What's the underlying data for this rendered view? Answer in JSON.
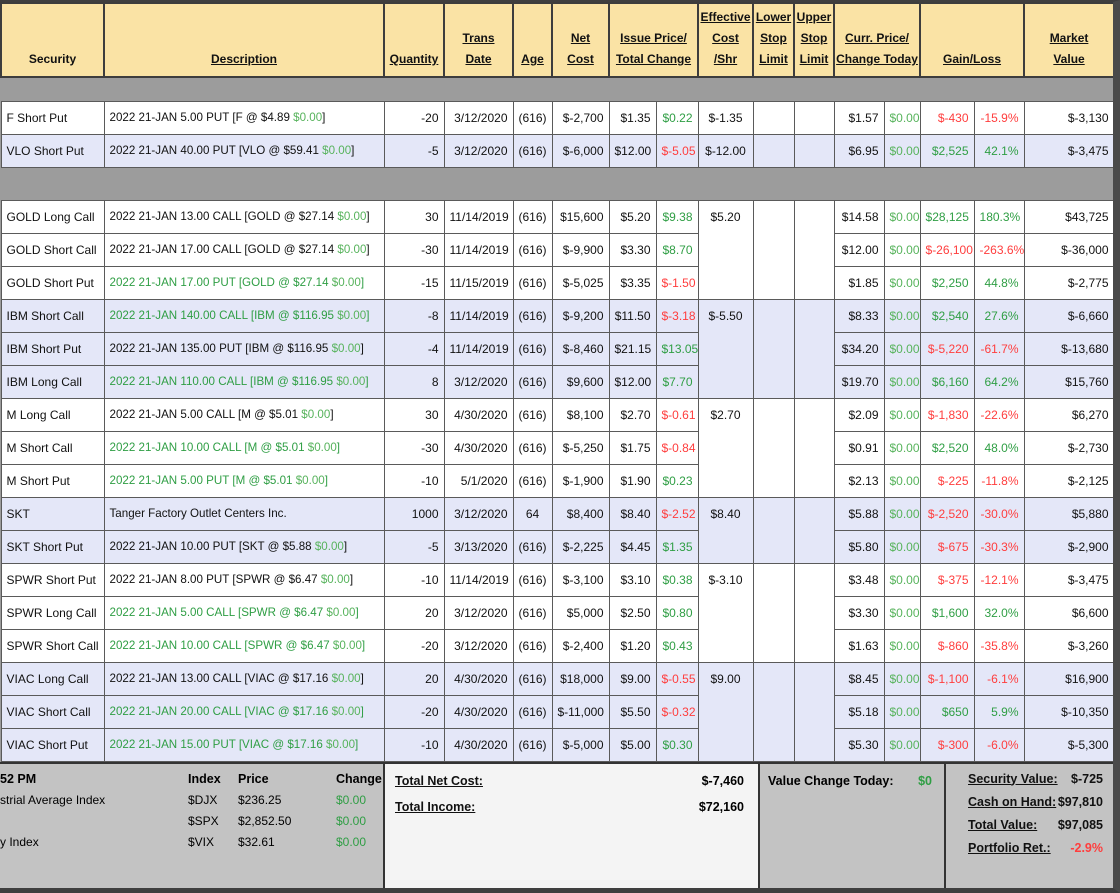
{
  "colors": {
    "positive": "#2f9e44",
    "positive_light": "#57b35c",
    "negative": "#ff3d3d",
    "header_bg": "#fae3a5",
    "row_alt_bg": "#e4e7f8",
    "separator_gray": "#9c9c9c",
    "footer_gray": "#c3c3c3"
  },
  "table": {
    "header": [
      {
        "lines": [
          "Security"
        ],
        "underline": false,
        "colspan": 1
      },
      {
        "lines": [
          "Description"
        ],
        "underline": true,
        "colspan": 1
      },
      {
        "lines": [
          "Quantity"
        ],
        "underline": true,
        "colspan": 1
      },
      {
        "lines": [
          "Trans",
          "Date"
        ],
        "underline": true,
        "colspan": 1
      },
      {
        "lines": [
          "Age"
        ],
        "underline": true,
        "colspan": 1
      },
      {
        "lines": [
          "Net",
          "Cost"
        ],
        "underline": true,
        "colspan": 1
      },
      {
        "lines": [
          "Issue Price/",
          "Total Change"
        ],
        "underline": true,
        "colspan": 2
      },
      {
        "lines": [
          "Effective",
          "Cost",
          "/Shr"
        ],
        "underline": true,
        "colspan": 1
      },
      {
        "lines": [
          "Lower",
          "Stop",
          "Limit"
        ],
        "underline": true,
        "colspan": 1
      },
      {
        "lines": [
          "Upper",
          "Stop",
          "Limit"
        ],
        "underline": true,
        "colspan": 1
      },
      {
        "lines": [
          "Curr. Price/",
          "Change Today"
        ],
        "underline": true,
        "colspan": 2
      },
      {
        "lines": [
          "Gain/Loss"
        ],
        "underline": true,
        "colspan": 2
      },
      {
        "lines": [
          "Market",
          "Value"
        ],
        "underline": true,
        "colspan": 1
      }
    ],
    "groups": [
      {
        "bg": "w",
        "eff": "$-1.35",
        "rows": [
          {
            "sec": "F Short Put",
            "pre": "2022 21-JAN 5.00 PUT [F @ $4.89 ",
            "chg": "$0.00",
            "post": "]",
            "dc": "k",
            "qty": "-20",
            "date": "3/12/2020",
            "age": "(616)",
            "net": "$-2,700",
            "ip": "$1.35",
            "tc": "$0.22",
            "tcc": "g",
            "cp": "$1.57",
            "ct": "$0.00",
            "gain": "$-430",
            "gc": "r",
            "pct": "-15.9%",
            "pc": "r",
            "mv": "$-3,130"
          }
        ]
      },
      {
        "bg": "l",
        "eff": "$-12.00",
        "rows": [
          {
            "sec": "VLO Short Put",
            "pre": "2022 21-JAN 40.00 PUT [VLO @ $59.41 ",
            "chg": "$0.00",
            "post": "]",
            "dc": "k",
            "qty": "-5",
            "date": "3/12/2020",
            "age": "(616)",
            "net": "$-6,000",
            "ip": "$12.00",
            "tc": "$-5.05",
            "tcc": "r",
            "cp": "$6.95",
            "ct": "$0.00",
            "gain": "$2,525",
            "gc": "g",
            "pct": "42.1%",
            "pc": "g",
            "mv": "$-3,475"
          }
        ]
      },
      {
        "bg": "w",
        "eff": "$5.20",
        "rows": [
          {
            "sec": "GOLD Long Call",
            "pre": "2022 21-JAN 13.00 CALL [GOLD @ $27.14 ",
            "chg": "$0.00",
            "post": "]",
            "dc": "k",
            "qty": "30",
            "date": "11/14/2019",
            "age": "(616)",
            "net": "$15,600",
            "ip": "$5.20",
            "tc": "$9.38",
            "tcc": "g",
            "cp": "$14.58",
            "ct": "$0.00",
            "gain": "$28,125",
            "gc": "g",
            "pct": "180.3%",
            "pc": "g",
            "mv": "$43,725"
          },
          {
            "sec": "GOLD Short Call",
            "pre": "2022 21-JAN 17.00 CALL [GOLD @ $27.14 ",
            "chg": "$0.00",
            "post": "]",
            "dc": "k",
            "qty": "-30",
            "date": "11/14/2019",
            "age": "(616)",
            "net": "$-9,900",
            "ip": "$3.30",
            "tc": "$8.70",
            "tcc": "g",
            "cp": "$12.00",
            "ct": "$0.00",
            "gain": "$-26,100",
            "gc": "r",
            "pct": "-263.6%",
            "pc": "r",
            "mv": "$-36,000"
          },
          {
            "sec": "GOLD Short Put",
            "pre": "2022 21-JAN 17.00 PUT [GOLD @ $27.14 ",
            "chg": "$0.00",
            "post": "]",
            "dc": "g",
            "qty": "-15",
            "date": "11/15/2019",
            "age": "(616)",
            "net": "$-5,025",
            "ip": "$3.35",
            "tc": "$-1.50",
            "tcc": "r",
            "cp": "$1.85",
            "ct": "$0.00",
            "gain": "$2,250",
            "gc": "g",
            "pct": "44.8%",
            "pc": "g",
            "mv": "$-2,775"
          }
        ]
      },
      {
        "bg": "l",
        "eff": "$-5.50",
        "rows": [
          {
            "sec": "IBM Short Call",
            "pre": "2022 21-JAN 140.00 CALL [IBM @ $116.95 ",
            "chg": "$0.00",
            "post": "]",
            "dc": "g",
            "qty": "-8",
            "date": "11/14/2019",
            "age": "(616)",
            "net": "$-9,200",
            "ip": "$11.50",
            "tc": "$-3.18",
            "tcc": "r",
            "cp": "$8.33",
            "ct": "$0.00",
            "gain": "$2,540",
            "gc": "g",
            "pct": "27.6%",
            "pc": "g",
            "mv": "$-6,660"
          },
          {
            "sec": "IBM Short Put",
            "pre": "2022 21-JAN 135.00 PUT [IBM @ $116.95 ",
            "chg": "$0.00",
            "post": "]",
            "dc": "k",
            "qty": "-4",
            "date": "11/14/2019",
            "age": "(616)",
            "net": "$-8,460",
            "ip": "$21.15",
            "tc": "$13.05",
            "tcc": "g",
            "cp": "$34.20",
            "ct": "$0.00",
            "gain": "$-5,220",
            "gc": "r",
            "pct": "-61.7%",
            "pc": "r",
            "mv": "$-13,680"
          },
          {
            "sec": "IBM Long Call",
            "pre": "2022 21-JAN 110.00 CALL [IBM @ $116.95 ",
            "chg": "$0.00",
            "post": "]",
            "dc": "g",
            "qty": "8",
            "date": "3/12/2020",
            "age": "(616)",
            "net": "$9,600",
            "ip": "$12.00",
            "tc": "$7.70",
            "tcc": "g",
            "cp": "$19.70",
            "ct": "$0.00",
            "gain": "$6,160",
            "gc": "g",
            "pct": "64.2%",
            "pc": "g",
            "mv": "$15,760"
          }
        ]
      },
      {
        "bg": "w",
        "eff": "$2.70",
        "rows": [
          {
            "sec": "M Long Call",
            "pre": "2022 21-JAN 5.00 CALL [M @ $5.01 ",
            "chg": "$0.00",
            "post": "]",
            "dc": "k",
            "qty": "30",
            "date": "4/30/2020",
            "age": "(616)",
            "net": "$8,100",
            "ip": "$2.70",
            "tc": "$-0.61",
            "tcc": "r",
            "cp": "$2.09",
            "ct": "$0.00",
            "gain": "$-1,830",
            "gc": "r",
            "pct": "-22.6%",
            "pc": "r",
            "mv": "$6,270"
          },
          {
            "sec": "M Short Call",
            "pre": "2022 21-JAN 10.00 CALL [M @ $5.01 ",
            "chg": "$0.00",
            "post": "]",
            "dc": "g",
            "qty": "-30",
            "date": "4/30/2020",
            "age": "(616)",
            "net": "$-5,250",
            "ip": "$1.75",
            "tc": "$-0.84",
            "tcc": "r",
            "cp": "$0.91",
            "ct": "$0.00",
            "gain": "$2,520",
            "gc": "g",
            "pct": "48.0%",
            "pc": "g",
            "mv": "$-2,730"
          },
          {
            "sec": "M Short Put",
            "pre": "2022 21-JAN 5.00 PUT [M @ $5.01 ",
            "chg": "$0.00",
            "post": "]",
            "dc": "g",
            "qty": "-10",
            "date": "5/1/2020",
            "age": "(616)",
            "net": "$-1,900",
            "ip": "$1.90",
            "tc": "$0.23",
            "tcc": "g",
            "cp": "$2.13",
            "ct": "$0.00",
            "gain": "$-225",
            "gc": "r",
            "pct": "-11.8%",
            "pc": "r",
            "mv": "$-2,125"
          }
        ]
      },
      {
        "bg": "l",
        "eff": "$8.40",
        "rows": [
          {
            "sec": "SKT",
            "pre": "Tanger Factory Outlet Centers Inc.",
            "chg": "",
            "post": "",
            "dc": "k",
            "qty": "1000",
            "date": "3/12/2020",
            "age": "64",
            "net": "$8,400",
            "ip": "$8.40",
            "tc": "$-2.52",
            "tcc": "r",
            "cp": "$5.88",
            "ct": "$0.00",
            "gain": "$-2,520",
            "gc": "r",
            "pct": "-30.0%",
            "pc": "r",
            "mv": "$5,880"
          },
          {
            "sec": "SKT Short Put",
            "pre": "2022 21-JAN 10.00 PUT [SKT @ $5.88 ",
            "chg": "$0.00",
            "post": "]",
            "dc": "k",
            "qty": "-5",
            "date": "3/13/2020",
            "age": "(616)",
            "net": "$-2,225",
            "ip": "$4.45",
            "tc": "$1.35",
            "tcc": "g",
            "cp": "$5.80",
            "ct": "$0.00",
            "gain": "$-675",
            "gc": "r",
            "pct": "-30.3%",
            "pc": "r",
            "mv": "$-2,900"
          }
        ]
      },
      {
        "bg": "w",
        "eff": "$-3.10",
        "rows": [
          {
            "sec": "SPWR Short Put",
            "pre": "2022 21-JAN 8.00 PUT [SPWR @ $6.47 ",
            "chg": "$0.00",
            "post": "]",
            "dc": "k",
            "qty": "-10",
            "date": "11/14/2019",
            "age": "(616)",
            "net": "$-3,100",
            "ip": "$3.10",
            "tc": "$0.38",
            "tcc": "g",
            "cp": "$3.48",
            "ct": "$0.00",
            "gain": "$-375",
            "gc": "r",
            "pct": "-12.1%",
            "pc": "r",
            "mv": "$-3,475"
          },
          {
            "sec": "SPWR Long Call",
            "pre": "2022 21-JAN 5.00 CALL [SPWR @ $6.47 ",
            "chg": "$0.00",
            "post": "]",
            "dc": "g",
            "qty": "20",
            "date": "3/12/2020",
            "age": "(616)",
            "net": "$5,000",
            "ip": "$2.50",
            "tc": "$0.80",
            "tcc": "g",
            "cp": "$3.30",
            "ct": "$0.00",
            "gain": "$1,600",
            "gc": "g",
            "pct": "32.0%",
            "pc": "g",
            "mv": "$6,600"
          },
          {
            "sec": "SPWR Short Call",
            "pre": "2022 21-JAN 10.00 CALL [SPWR @ $6.47 ",
            "chg": "$0.00",
            "post": "]",
            "dc": "g",
            "qty": "-20",
            "date": "3/12/2020",
            "age": "(616)",
            "net": "$-2,400",
            "ip": "$1.20",
            "tc": "$0.43",
            "tcc": "g",
            "cp": "$1.63",
            "ct": "$0.00",
            "gain": "$-860",
            "gc": "r",
            "pct": "-35.8%",
            "pc": "r",
            "mv": "$-3,260"
          }
        ]
      },
      {
        "bg": "l",
        "eff": "$9.00",
        "rows": [
          {
            "sec": "VIAC Long Call",
            "pre": "2022 21-JAN 13.00 CALL [VIAC @ $17.16 ",
            "chg": "$0.00",
            "post": "]",
            "dc": "k",
            "qty": "20",
            "date": "4/30/2020",
            "age": "(616)",
            "net": "$18,000",
            "ip": "$9.00",
            "tc": "$-0.55",
            "tcc": "r",
            "cp": "$8.45",
            "ct": "$0.00",
            "gain": "$-1,100",
            "gc": "r",
            "pct": "-6.1%",
            "pc": "r",
            "mv": "$16,900"
          },
          {
            "sec": "VIAC Short Call",
            "pre": "2022 21-JAN 20.00 CALL [VIAC @ $17.16 ",
            "chg": "$0.00",
            "post": "]",
            "dc": "g",
            "qty": "-20",
            "date": "4/30/2020",
            "age": "(616)",
            "net": "$-11,000",
            "ip": "$5.50",
            "tc": "$-0.32",
            "tcc": "r",
            "cp": "$5.18",
            "ct": "$0.00",
            "gain": "$650",
            "gc": "g",
            "pct": "5.9%",
            "pc": "g",
            "mv": "$-10,350"
          },
          {
            "sec": "VIAC Short Put",
            "pre": "2022 21-JAN 15.00 PUT [VIAC @ $17.16 ",
            "chg": "$0.00",
            "post": "]",
            "dc": "g",
            "qty": "-10",
            "date": "4/30/2020",
            "age": "(616)",
            "net": "$-5,000",
            "ip": "$5.00",
            "tc": "$0.30",
            "tcc": "g",
            "cp": "$5.30",
            "ct": "$0.00",
            "gain": "$-300",
            "gc": "r",
            "pct": "-6.0%",
            "pc": "r",
            "mv": "$-5,300"
          }
        ]
      }
    ]
  },
  "footer": {
    "indexes": {
      "time": "52 PM",
      "headers": [
        "Index",
        "Price",
        "Change"
      ],
      "rows": [
        {
          "label": "strial Average Index",
          "index": "$DJX",
          "price": "$236.25",
          "change": "$0.00"
        },
        {
          "label": "",
          "index": "$SPX",
          "price": "$2,852.50",
          "change": "$0.00"
        },
        {
          "label": "y Index",
          "index": "$VIX",
          "price": "$32.61",
          "change": "$0.00"
        }
      ]
    },
    "totals": {
      "net_cost_label": "Total Net Cost:",
      "net_cost": "$-7,460",
      "income_label": "Total Income:",
      "income": "$72,160"
    },
    "value_change": {
      "label": "Value Change Today:",
      "value": "$0"
    },
    "summary": [
      {
        "label": "Security Value:",
        "value": "$-725",
        "color": "k"
      },
      {
        "label": "Cash on Hand:",
        "value": "$97,810",
        "color": "k"
      },
      {
        "label": "Total Value:",
        "value": "$97,085",
        "color": "k"
      },
      {
        "label": "Portfolio Ret.:",
        "value": "-2.9%",
        "color": "r"
      }
    ]
  }
}
